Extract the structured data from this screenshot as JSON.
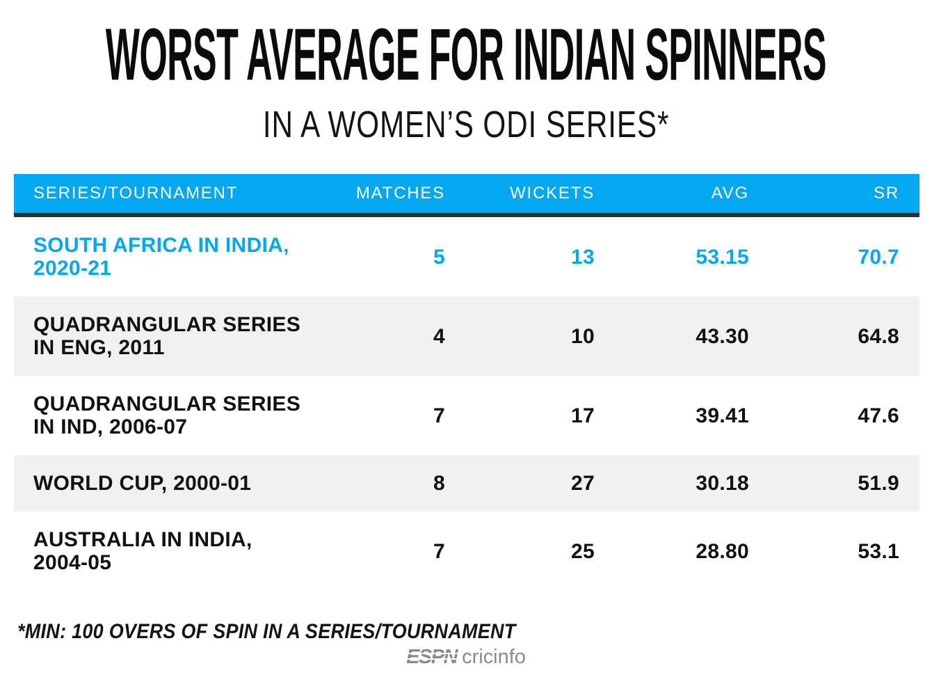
{
  "page": {
    "title": "WORST AVERAGE FOR INDIAN SPINNERS",
    "subtitle": "IN A WOMEN’S ODI SERIES*",
    "footnote": "*MIN: 100 OVERS OF SPIN IN A SERIES/TOURNAMENT",
    "logo": {
      "espn": "ESPN",
      "cricinfo": "cricinfo"
    }
  },
  "table": {
    "columns": [
      "SERIES/TOURNAMENT",
      "MATCHES",
      "WICKETS",
      "AVG",
      "SR"
    ],
    "rows": [
      {
        "series": "SOUTH AFRICA IN INDIA,\n2020-21",
        "matches": "5",
        "wickets": "13",
        "avg": "53.15",
        "sr": "70.7",
        "highlighted": true
      },
      {
        "series": "QUADRANGULAR SERIES\nIN ENG, 2011",
        "matches": "4",
        "wickets": "10",
        "avg": "43.30",
        "sr": "64.8",
        "highlighted": false
      },
      {
        "series": "QUADRANGULAR SERIES\nIN IND, 2006-07",
        "matches": "7",
        "wickets": "17",
        "avg": "39.41",
        "sr": "47.6",
        "highlighted": false
      },
      {
        "series": "WORLD CUP, 2000-01",
        "matches": "8",
        "wickets": "27",
        "avg": "30.18",
        "sr": "51.9",
        "highlighted": false
      },
      {
        "series": "AUSTRALIA IN INDIA,\n2004-05",
        "matches": "7",
        "wickets": "25",
        "avg": "28.80",
        "sr": "53.1",
        "highlighted": false
      }
    ]
  },
  "chart_data": {
    "type": "table",
    "title": "WORST AVERAGE FOR INDIAN SPINNERS",
    "subtitle": "IN A WOMEN’S ODI SERIES*",
    "columns": [
      "SERIES/TOURNAMENT",
      "MATCHES",
      "WICKETS",
      "AVG",
      "SR"
    ],
    "rows": [
      [
        "SOUTH AFRICA IN INDIA, 2020-21",
        5,
        13,
        53.15,
        70.7
      ],
      [
        "QUADRANGULAR SERIES IN ENG, 2011",
        4,
        10,
        43.3,
        64.8
      ],
      [
        "QUADRANGULAR SERIES IN IND, 2006-07",
        7,
        17,
        39.41,
        47.6
      ],
      [
        "WORLD CUP, 2000-01",
        8,
        27,
        30.18,
        51.9
      ],
      [
        "AUSTRALIA IN INDIA, 2004-05",
        7,
        25,
        28.8,
        53.1
      ]
    ],
    "highlighted_row": 0,
    "footnote": "*MIN: 100 OVERS OF SPIN IN A SERIES/TOURNAMENT"
  },
  "colors": {
    "accent-blue": "#05a7f0",
    "header-text": "#ffffff",
    "header-underline": "#2c2f33",
    "row-alt-bg": "#f1f1f1",
    "body-text": "#111111",
    "logo-gray": "#8a8a8a"
  }
}
